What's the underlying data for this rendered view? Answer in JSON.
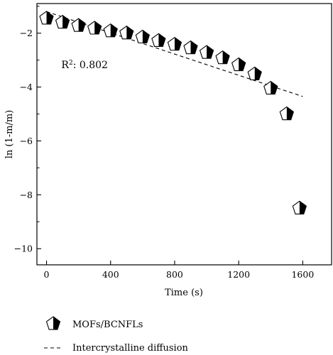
{
  "chart_data": {
    "type": "scatter",
    "title": "",
    "xlabel": "Time (s)",
    "ylabel": "ln (1-m/m)",
    "xlim": [
      -60,
      1780
    ],
    "ylim": [
      -10.6,
      -0.9
    ],
    "xticks": [
      0,
      400,
      800,
      1200,
      1600
    ],
    "yticks": [
      -2,
      -4,
      -6,
      -8,
      -10
    ],
    "grid": false,
    "legend_position": "bottom",
    "series": [
      {
        "name": "MOFs/BCNFLs",
        "marker": "half-filled-pentagon",
        "x": [
          0,
          100,
          200,
          300,
          400,
          500,
          600,
          700,
          800,
          900,
          1000,
          1100,
          1200,
          1300,
          1400,
          1500,
          1580
        ],
        "y": [
          -1.45,
          -1.6,
          -1.72,
          -1.82,
          -1.92,
          -2.0,
          -2.15,
          -2.28,
          -2.42,
          -2.55,
          -2.72,
          -2.92,
          -3.18,
          -3.52,
          -4.05,
          -5.0,
          -8.5
        ]
      },
      {
        "name": "Intercrystalline diffusion",
        "style": "dashed-line",
        "x": [
          0,
          1600
        ],
        "y": [
          -1.2,
          -4.35
        ]
      }
    ],
    "annotation": {
      "label": "R",
      "superscript": "2",
      "text": ": 0.802",
      "x": 270,
      "y": -3.3
    }
  }
}
